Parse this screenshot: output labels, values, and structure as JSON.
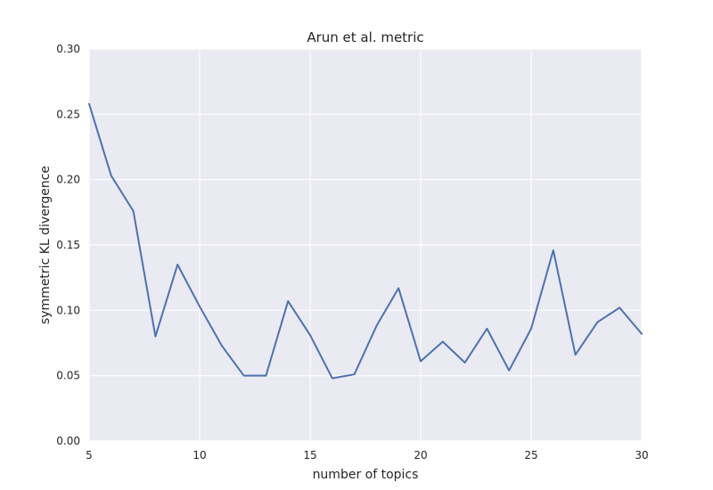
{
  "chart_data": {
    "type": "line",
    "title": "Arun et al. metric",
    "xlabel": "number of topics",
    "ylabel": "symmetric KL divergence",
    "xlim": [
      5,
      30
    ],
    "ylim": [
      0.0,
      0.3
    ],
    "xticks": [
      5,
      10,
      15,
      20,
      25,
      30
    ],
    "xtick_labels": [
      "5",
      "10",
      "15",
      "20",
      "25",
      "30"
    ],
    "yticks": [
      0.0,
      0.05,
      0.1,
      0.15,
      0.2,
      0.25,
      0.3
    ],
    "ytick_labels": [
      "0.00",
      "0.05",
      "0.10",
      "0.15",
      "0.20",
      "0.25",
      "0.30"
    ],
    "grid": true,
    "style": {
      "background": "#eaeaf2",
      "grid_color": "#ffffff",
      "line_color": "#4c72b0"
    },
    "series": [
      {
        "x": [
          5,
          6,
          7,
          8,
          9,
          10,
          11,
          12,
          13,
          14,
          15,
          16,
          17,
          18,
          19,
          20,
          21,
          22,
          23,
          24,
          25,
          26,
          27,
          28,
          29,
          30
        ],
        "values": [
          0.258,
          0.203,
          0.176,
          0.08,
          0.135,
          0.103,
          0.073,
          0.05,
          0.05,
          0.107,
          0.081,
          0.048,
          0.051,
          0.088,
          0.117,
          0.061,
          0.076,
          0.06,
          0.086,
          0.054,
          0.086,
          0.146,
          0.066,
          0.091,
          0.102,
          0.082
        ]
      }
    ]
  }
}
